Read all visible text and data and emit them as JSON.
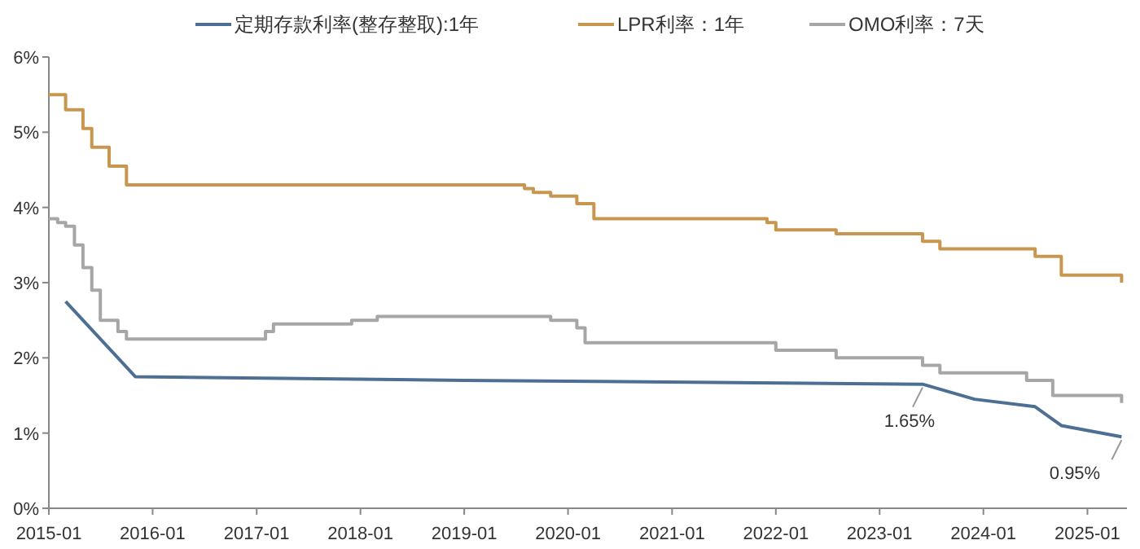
{
  "chart_data": {
    "type": "line",
    "xlim": [
      "2015-01",
      "2025-05-20"
    ],
    "xticks": [
      "2015-01",
      "2016-01",
      "2017-01",
      "2018-01",
      "2019-01",
      "2020-01",
      "2021-01",
      "2022-01",
      "2023-01",
      "2024-01",
      "2025-01"
    ],
    "ylim": [
      0,
      6
    ],
    "yticks": [
      {
        "value": 0,
        "label": "0%"
      },
      {
        "value": 1,
        "label": "1%"
      },
      {
        "value": 2,
        "label": "2%"
      },
      {
        "value": 3,
        "label": "3%"
      },
      {
        "value": 4,
        "label": "4%"
      },
      {
        "value": 5,
        "label": "5%"
      },
      {
        "value": 6,
        "label": "6%"
      }
    ],
    "grid": false,
    "legend": "top",
    "marker": "none",
    "line_style": "solid",
    "series": [
      {
        "name": "定期存款利率(整存整取):1年",
        "color": "#4e6f94",
        "x": [
          "2015-03",
          "2015-05",
          "2015-11",
          "2019-01",
          "2023-06",
          "2023-12",
          "2024-07",
          "2024-10",
          "2025-05"
        ],
        "values": [
          2.75,
          2.5,
          1.75,
          1.7,
          1.65,
          1.45,
          1.35,
          1.1,
          0.95
        ]
      },
      {
        "name": "LPR利率：1年",
        "type": "step",
        "color": "#c8964f",
        "x": [
          "2015-01",
          "2015-03",
          "2015-05",
          "2015-06",
          "2015-08",
          "2015-10",
          "2019-08",
          "2019-09",
          "2019-11",
          "2020-02",
          "2020-04",
          "2021-12",
          "2022-01",
          "2022-08",
          "2023-06",
          "2023-08",
          "2024-07",
          "2024-10",
          "2025-05"
        ],
        "values": [
          5.5,
          5.3,
          5.05,
          4.8,
          4.55,
          4.3,
          4.25,
          4.2,
          4.15,
          4.05,
          3.85,
          3.8,
          3.7,
          3.65,
          3.55,
          3.45,
          3.35,
          3.1,
          3.0
        ]
      },
      {
        "name": "OMO利率：7天",
        "type": "step",
        "color": "#a6a6a6",
        "x": [
          "2015-01",
          "2015-02",
          "2015-03",
          "2015-04",
          "2015-05",
          "2015-06",
          "2015-07",
          "2015-09",
          "2015-10",
          "2017-02",
          "2017-03",
          "2017-12",
          "2018-03",
          "2019-11",
          "2020-02",
          "2020-03",
          "2022-01",
          "2022-08",
          "2023-06",
          "2023-08",
          "2024-06",
          "2024-09",
          "2025-05"
        ],
        "values": [
          3.85,
          3.8,
          3.75,
          3.5,
          3.2,
          2.9,
          2.5,
          2.35,
          2.25,
          2.35,
          2.45,
          2.5,
          2.55,
          2.5,
          2.4,
          2.2,
          2.1,
          2.0,
          1.9,
          1.8,
          1.7,
          1.5,
          1.4
        ]
      }
    ],
    "annotations": [
      {
        "text": "1.65%",
        "x": "2023-06",
        "y": 1.65
      },
      {
        "text": "0.95%",
        "x": "2025-05",
        "y": 0.95
      }
    ]
  }
}
